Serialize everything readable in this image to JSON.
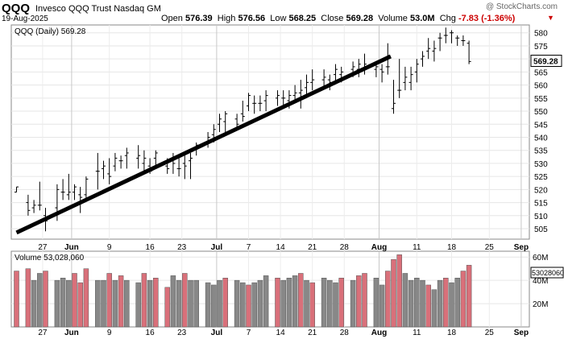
{
  "header": {
    "symbol": "QQQ",
    "description": "Invesco QQQ Trust  Nasdaq GM",
    "date": "19-Aug-2025",
    "watermark": "@ StockCharts.com",
    "open_label": "Open",
    "open": "576.39",
    "high_label": "High",
    "high": "576.56",
    "low_label": "Low",
    "low": "568.25",
    "close_label": "Close",
    "close": "569.28",
    "volume_label": "Volume",
    "volume": "53.0M",
    "chg_label": "Chg",
    "chg": "-7.83 (-1.36%)",
    "chg_icon": "down-triangle-icon"
  },
  "chart_data": {
    "type": "ohlc",
    "price_label": "QQQ (Daily) 569.28",
    "volume_label": "Volume 53,028,060",
    "last_price_tag": "569.28",
    "last_volume_tag": "53028060",
    "x_ticks": [
      "27",
      "Jun",
      "9",
      "16",
      "23",
      "Jul",
      "7",
      "14",
      "21",
      "28",
      "Aug",
      "11",
      "18",
      "25",
      "Sep"
    ],
    "price_ticks": [
      505,
      510,
      515,
      520,
      525,
      530,
      535,
      540,
      545,
      550,
      555,
      560,
      565,
      570,
      575,
      580
    ],
    "price_ylim": [
      501,
      583
    ],
    "volume_ticks": [
      {
        "v": 20,
        "label": "20M"
      },
      {
        "v": 40,
        "label": "40M"
      },
      {
        "v": 60,
        "label": "60M"
      }
    ],
    "volume_ylim": [
      0,
      65
    ],
    "trendline": {
      "start": [
        0,
        503.5
      ],
      "end": [
        64.5,
        571
      ]
    },
    "colors": {
      "up": "#888888",
      "down": "#d9707a",
      "trend": "#000000"
    },
    "bars": [
      [
        0,
        519,
        521,
        519,
        521,
        48,
        "d"
      ],
      [
        2,
        515,
        518,
        510,
        512,
        50,
        "d"
      ],
      [
        3,
        513,
        516,
        511,
        514,
        40,
        "u"
      ],
      [
        4,
        514,
        523,
        512,
        514,
        46,
        "u"
      ],
      [
        5,
        510,
        513,
        504,
        508,
        48,
        "d"
      ],
      [
        7,
        513,
        522,
        508,
        520,
        40,
        "u"
      ],
      [
        8,
        519,
        524,
        516,
        519,
        42,
        "u"
      ],
      [
        9,
        518,
        526,
        516,
        519,
        40,
        "u"
      ],
      [
        10,
        519,
        522,
        516,
        521,
        46,
        "d"
      ],
      [
        11,
        518,
        521,
        511,
        517,
        38,
        "d"
      ],
      [
        12,
        518,
        525,
        516,
        524,
        50,
        "d"
      ],
      [
        14,
        527,
        534,
        520,
        527,
        40,
        "u"
      ],
      [
        15,
        528,
        531,
        524,
        529,
        40,
        "u"
      ],
      [
        16,
        526,
        532,
        522,
        525,
        46,
        "d"
      ],
      [
        17,
        529,
        534,
        527,
        532,
        40,
        "u"
      ],
      [
        18,
        531,
        533,
        528,
        531,
        44,
        "d"
      ],
      [
        19,
        533,
        536,
        528,
        534,
        40,
        "u"
      ],
      [
        21,
        532,
        537,
        528,
        533,
        38,
        "u"
      ],
      [
        22,
        530,
        535,
        526,
        532,
        46,
        "d"
      ],
      [
        23,
        529,
        532,
        526,
        527,
        40,
        "u"
      ],
      [
        24,
        532,
        535,
        528,
        534,
        42,
        "d"
      ],
      [
        26,
        529,
        532,
        526,
        528,
        34,
        "d"
      ],
      [
        27,
        531,
        534,
        526,
        530,
        44,
        "u"
      ],
      [
        28,
        528,
        532,
        525,
        528,
        40,
        "u"
      ],
      [
        29,
        530,
        533,
        524,
        529,
        46,
        "d"
      ],
      [
        30,
        531,
        534,
        524,
        532,
        40,
        "u"
      ],
      [
        31,
        536,
        538,
        533,
        537,
        40,
        "u"
      ],
      [
        33,
        538,
        542,
        536,
        540,
        38,
        "u"
      ],
      [
        34,
        541,
        545,
        538,
        543,
        36,
        "u"
      ],
      [
        35,
        545,
        549,
        542,
        547,
        40,
        "u"
      ],
      [
        36,
        546,
        550,
        542,
        549,
        42,
        "d"
      ],
      [
        38,
        547,
        549,
        544,
        545,
        40,
        "u"
      ],
      [
        39,
        549,
        554,
        546,
        548,
        38,
        "u"
      ],
      [
        40,
        552,
        557,
        550,
        556,
        36,
        "d"
      ],
      [
        41,
        553,
        556,
        549,
        553,
        38,
        "u"
      ],
      [
        42,
        553,
        556,
        550,
        553,
        40,
        "u"
      ],
      [
        43,
        554,
        558,
        550,
        556,
        44,
        "u"
      ],
      [
        45,
        555,
        558,
        552,
        556,
        42,
        "d"
      ],
      [
        46,
        555,
        558,
        552,
        555,
        40,
        "u"
      ],
      [
        47,
        554,
        558,
        551,
        556,
        42,
        "u"
      ],
      [
        48,
        556,
        560,
        553,
        557,
        44,
        "u"
      ],
      [
        49,
        557,
        562,
        551,
        558,
        46,
        "d"
      ],
      [
        50,
        559,
        564,
        556,
        561,
        40,
        "u"
      ],
      [
        51,
        561,
        566,
        558,
        562,
        38,
        "d"
      ],
      [
        53,
        562,
        566,
        559,
        563,
        42,
        "u"
      ],
      [
        54,
        562,
        564,
        558,
        561,
        40,
        "u"
      ],
      [
        55,
        564,
        568,
        561,
        566,
        38,
        "u"
      ],
      [
        56,
        564,
        567,
        561,
        565,
        42,
        "d"
      ],
      [
        58,
        566,
        569,
        563,
        567,
        40,
        "u"
      ],
      [
        59,
        566,
        570,
        563,
        568,
        44,
        "d"
      ],
      [
        60,
        566,
        572,
        564,
        568,
        46,
        "d"
      ],
      [
        62,
        566,
        569,
        563,
        567,
        42,
        "u"
      ],
      [
        63,
        566,
        568,
        561,
        565,
        36,
        "u"
      ],
      [
        64,
        567,
        576,
        564,
        567,
        48,
        "d"
      ],
      [
        65,
        551,
        562,
        549,
        553,
        58,
        "d"
      ],
      [
        66,
        558,
        570,
        555,
        558,
        62,
        "d"
      ],
      [
        67,
        561,
        567,
        558,
        563,
        46,
        "u"
      ],
      [
        68,
        561,
        567,
        558,
        564,
        40,
        "u"
      ],
      [
        69,
        565,
        570,
        561,
        568,
        42,
        "u"
      ],
      [
        70,
        570,
        573,
        567,
        571,
        40,
        "u"
      ],
      [
        71,
        573,
        578,
        570,
        574,
        36,
        "d"
      ],
      [
        72,
        573,
        577,
        569,
        574,
        32,
        "u"
      ],
      [
        73,
        578,
        580,
        573,
        578,
        40,
        "u"
      ],
      [
        74,
        579,
        582,
        576,
        579,
        42,
        "d"
      ],
      [
        75,
        580,
        581,
        576,
        580,
        38,
        "u"
      ],
      [
        76,
        578,
        579,
        575,
        578,
        42,
        "u"
      ],
      [
        77,
        577,
        579,
        575,
        577,
        48,
        "d"
      ],
      [
        78,
        576,
        577,
        568,
        569,
        53,
        "d"
      ]
    ]
  }
}
